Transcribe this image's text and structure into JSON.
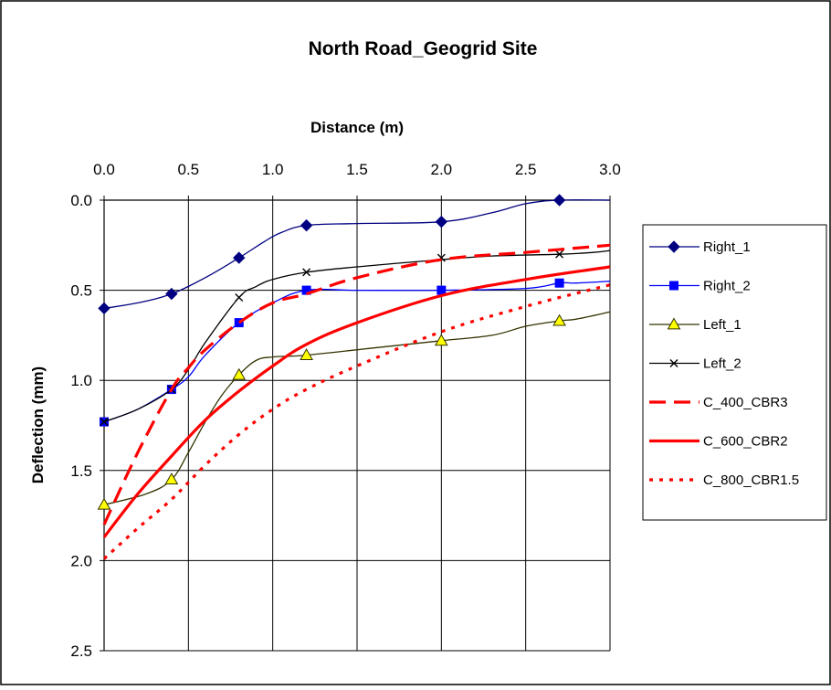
{
  "chart_data": {
    "type": "line",
    "title": "North Road_Geogrid Site",
    "xlabel": "Distance (m)",
    "ylabel": "Deflection (mm)",
    "xlim": [
      0,
      3.0
    ],
    "ylim": [
      0,
      2.5
    ],
    "y_inverted": true,
    "x_axis_position": "top",
    "x_ticks": [
      "0.0",
      "0.5",
      "1.0",
      "1.5",
      "2.0",
      "2.5",
      "3.0"
    ],
    "y_ticks": [
      "0.0",
      "0.5",
      "1.0",
      "1.5",
      "2.0",
      "2.5"
    ],
    "grid": true,
    "legend_position": "right",
    "series": [
      {
        "name": "Right_1",
        "color": "#000080",
        "style": "solid",
        "marker": "diamond",
        "width": 1.3,
        "x": [
          0,
          0.4,
          0.8,
          1.2,
          2.0,
          2.7
        ],
        "y": [
          0.6,
          0.52,
          0.32,
          0.14,
          0.12,
          0.0
        ],
        "line_x": [
          0,
          0.2,
          0.4,
          0.6,
          0.8,
          0.95,
          1.05,
          1.2,
          1.5,
          2.0,
          2.3,
          2.5,
          2.7,
          3.0
        ],
        "line_y": [
          0.6,
          0.57,
          0.52,
          0.43,
          0.32,
          0.23,
          0.18,
          0.14,
          0.13,
          0.12,
          0.07,
          0.02,
          0.0,
          0.0
        ]
      },
      {
        "name": "Right_2",
        "color": "#0000ff",
        "style": "solid",
        "marker": "square",
        "width": 1.3,
        "x": [
          0,
          0.4,
          0.8,
          1.2,
          2.0,
          2.7
        ],
        "y": [
          1.23,
          1.05,
          0.68,
          0.5,
          0.5,
          0.46
        ],
        "line_x": [
          0,
          0.2,
          0.4,
          0.5,
          0.6,
          0.8,
          1.0,
          1.2,
          1.5,
          2.0,
          2.5,
          2.7,
          2.8,
          3.0
        ],
        "line_y": [
          1.23,
          1.16,
          1.05,
          0.98,
          0.86,
          0.68,
          0.57,
          0.5,
          0.5,
          0.5,
          0.49,
          0.46,
          0.46,
          0.45
        ]
      },
      {
        "name": "Left_1",
        "color": "#333300",
        "style": "solid",
        "marker": "triangle",
        "marker_fill": "#ffff00",
        "width": 1.3,
        "x": [
          0,
          0.4,
          0.8,
          1.2,
          2.0,
          2.7
        ],
        "y": [
          1.69,
          1.55,
          0.97,
          0.86,
          0.78,
          0.67
        ],
        "line_x": [
          0,
          0.25,
          0.4,
          0.5,
          0.6,
          0.7,
          0.8,
          0.9,
          1.0,
          1.2,
          1.6,
          2.0,
          2.3,
          2.5,
          2.7,
          2.8,
          3.0
        ],
        "line_y": [
          1.69,
          1.63,
          1.55,
          1.4,
          1.23,
          1.08,
          0.97,
          0.89,
          0.87,
          0.86,
          0.82,
          0.78,
          0.75,
          0.7,
          0.67,
          0.66,
          0.62
        ]
      },
      {
        "name": "Left_2",
        "color": "#000000",
        "style": "solid",
        "marker": "x",
        "width": 1.3,
        "x": [
          0,
          0.4,
          0.8,
          1.2,
          2.0,
          2.7
        ],
        "y": [
          1.23,
          1.05,
          0.54,
          0.4,
          0.32,
          0.3
        ],
        "line_x": [
          0,
          0.2,
          0.4,
          0.5,
          0.6,
          0.8,
          0.9,
          1.0,
          1.2,
          1.5,
          2.0,
          2.3,
          2.7,
          2.9,
          3.0
        ],
        "line_y": [
          1.23,
          1.16,
          1.05,
          0.94,
          0.79,
          0.54,
          0.48,
          0.44,
          0.4,
          0.37,
          0.33,
          0.31,
          0.3,
          0.29,
          0.28
        ]
      },
      {
        "name": "C_400_CBR3",
        "color": "#ff0000",
        "style": "dashed",
        "marker": "none",
        "width": 3.2,
        "x": [
          0,
          0.2,
          0.4,
          0.5,
          0.6,
          0.8,
          1.0,
          1.2,
          1.5,
          2.0,
          2.5,
          3.0
        ],
        "y": [
          1.8,
          1.4,
          1.05,
          0.93,
          0.83,
          0.68,
          0.57,
          0.52,
          0.43,
          0.33,
          0.29,
          0.25
        ]
      },
      {
        "name": "C_600_CBR2",
        "color": "#ff0000",
        "style": "solid",
        "marker": "none",
        "width": 3.2,
        "x": [
          0,
          0.2,
          0.4,
          0.6,
          0.8,
          1.0,
          1.2,
          1.5,
          2.0,
          2.5,
          3.0
        ],
        "y": [
          1.87,
          1.63,
          1.42,
          1.22,
          1.06,
          0.92,
          0.8,
          0.68,
          0.53,
          0.44,
          0.37
        ]
      },
      {
        "name": "C_800_CBR1.5",
        "color": "#ff0000",
        "style": "dotted",
        "marker": "none",
        "width": 3.2,
        "x": [
          0,
          0.2,
          0.4,
          0.6,
          0.8,
          1.0,
          1.2,
          1.5,
          2.0,
          2.5,
          3.0
        ],
        "y": [
          1.99,
          1.82,
          1.66,
          1.47,
          1.3,
          1.16,
          1.05,
          0.92,
          0.73,
          0.59,
          0.47
        ]
      }
    ]
  }
}
